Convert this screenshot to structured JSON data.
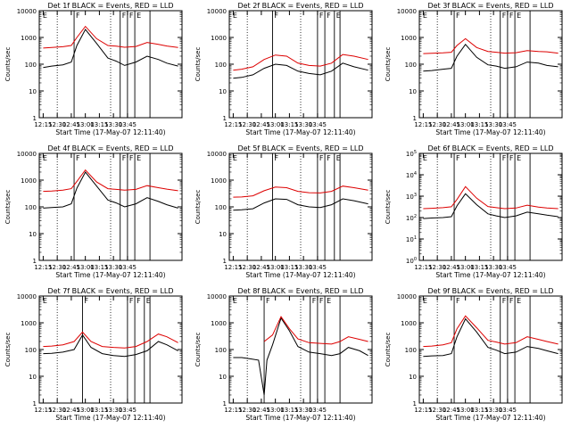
{
  "chart_data": [
    {
      "type": "line",
      "title": "Det 1f BLACK = Events, RED = LLD",
      "ylabel": "Counts/sec",
      "xlabel": "Start Time (17-May-07 12:11:40)",
      "ytick_style": "plain",
      "ylim": [
        1,
        10000
      ],
      "yscale": "log",
      "x_ticks": [
        "12:15",
        "12:30",
        "12:45",
        "13:00",
        "13:15",
        "13:30",
        "13:45"
      ],
      "vlines": [
        12.8,
        13.62,
        13.75,
        13.88,
        14.15
      ],
      "vdots": [
        12.5,
        13.45
      ],
      "marks": [
        "E",
        "F",
        "F",
        "F",
        "E"
      ],
      "series": [
        {
          "name": "Events",
          "color": "#000000",
          "x": [
            12.25,
            12.4,
            12.6,
            12.75,
            12.85,
            13.0,
            13.2,
            13.4,
            13.55,
            13.7,
            13.9,
            14.1,
            14.3,
            14.45,
            14.65
          ],
          "y": [
            75,
            85,
            95,
            120,
            500,
            2000,
            600,
            170,
            130,
            90,
            120,
            200,
            150,
            110,
            85
          ]
        },
        {
          "name": "LLD",
          "color": "#dd0000",
          "x": [
            12.25,
            12.4,
            12.6,
            12.75,
            12.85,
            13.0,
            13.2,
            13.4,
            13.55,
            13.7,
            13.9,
            14.1,
            14.3,
            14.45,
            14.65
          ],
          "y": [
            400,
            420,
            450,
            500,
            1000,
            2600,
            900,
            500,
            470,
            430,
            460,
            650,
            550,
            480,
            420
          ]
        }
      ]
    },
    {
      "type": "line",
      "title": "Det 2f BLACK = Events, RED = LLD",
      "ylabel": "Counts/sec",
      "xlabel": "Start Time (17-May-07 12:11:40)",
      "ytick_style": "plain",
      "ylim": [
        1,
        10000
      ],
      "yscale": "log",
      "x_ticks": [
        "12:15",
        "12:30",
        "12:45",
        "13:00",
        "13:15",
        "13:30",
        "13:45"
      ],
      "vlines": [
        12.95,
        13.75,
        13.88,
        14.05,
        14.15
      ],
      "vdots": [
        12.5,
        13.45
      ],
      "marks": [
        "E",
        "F",
        "F",
        "F",
        "E"
      ],
      "series": [
        {
          "name": "Events",
          "color": "#000000",
          "x": [
            12.25,
            12.4,
            12.6,
            12.8,
            13.0,
            13.2,
            13.4,
            13.6,
            13.8,
            14.0,
            14.2,
            14.4,
            14.65
          ],
          "y": [
            30,
            32,
            40,
            70,
            100,
            90,
            55,
            45,
            40,
            55,
            110,
            80,
            60
          ]
        },
        {
          "name": "LLD",
          "color": "#dd0000",
          "x": [
            12.25,
            12.4,
            12.6,
            12.8,
            13.0,
            13.2,
            13.4,
            13.6,
            13.8,
            14.0,
            14.2,
            14.4,
            14.65
          ],
          "y": [
            60,
            65,
            80,
            150,
            220,
            200,
            110,
            90,
            85,
            110,
            230,
            200,
            150
          ]
        }
      ]
    },
    {
      "type": "line",
      "title": "Det 3f BLACK = Events, RED = LLD",
      "ylabel": "Counts/sec",
      "xlabel": "Start Time (17-May-07 12:11:40)",
      "ytick_style": "plain",
      "ylim": [
        1,
        10000
      ],
      "yscale": "log",
      "x_ticks": [
        "12:15",
        "12:30",
        "12:45",
        "13:00",
        "13:15",
        "13:30",
        "13:45"
      ],
      "vlines": [
        12.8,
        13.62,
        13.75,
        13.88,
        14.15
      ],
      "vdots": [
        12.5,
        13.45
      ],
      "marks": [
        "E",
        "F",
        "F",
        "F",
        "E"
      ],
      "series": [
        {
          "name": "Events",
          "color": "#000000",
          "x": [
            12.25,
            12.4,
            12.6,
            12.75,
            12.85,
            13.0,
            13.2,
            13.4,
            13.55,
            13.7,
            13.9,
            14.1,
            14.3,
            14.45,
            14.65
          ],
          "y": [
            55,
            58,
            65,
            70,
            200,
            550,
            180,
            95,
            85,
            70,
            80,
            120,
            110,
            90,
            80
          ]
        },
        {
          "name": "LLD",
          "color": "#dd0000",
          "x": [
            12.25,
            12.4,
            12.6,
            12.75,
            12.85,
            13.0,
            13.2,
            13.4,
            13.55,
            13.7,
            13.9,
            14.1,
            14.3,
            14.45,
            14.65
          ],
          "y": [
            250,
            255,
            265,
            280,
            500,
            900,
            420,
            300,
            280,
            260,
            270,
            320,
            300,
            290,
            260
          ]
        }
      ]
    },
    {
      "type": "line",
      "title": "Det 4f BLACK = Events, RED = LLD",
      "ylabel": "Counts/sec",
      "xlabel": "Start Time (17-May-07 12:11:40)",
      "ytick_style": "plain",
      "ylim": [
        1,
        10000
      ],
      "yscale": "log",
      "x_ticks": [
        "12:15",
        "12:30",
        "12:45",
        "13:00",
        "13:15",
        "13:30",
        "13:45"
      ],
      "vlines": [
        12.8,
        13.62,
        13.75,
        13.88,
        14.15
      ],
      "vdots": [
        12.5,
        13.45
      ],
      "marks": [
        "E",
        "F",
        "F",
        "F",
        "E"
      ],
      "series": [
        {
          "name": "Events",
          "color": "#000000",
          "x": [
            12.25,
            12.4,
            12.6,
            12.75,
            12.85,
            13.0,
            13.2,
            13.4,
            13.55,
            13.7,
            13.9,
            14.1,
            14.3,
            14.45,
            14.65
          ],
          "y": [
            90,
            95,
            100,
            130,
            500,
            2000,
            600,
            180,
            140,
            100,
            130,
            220,
            160,
            120,
            90
          ]
        },
        {
          "name": "LLD",
          "color": "#dd0000",
          "x": [
            12.25,
            12.4,
            12.6,
            12.75,
            12.85,
            13.0,
            13.2,
            13.4,
            13.55,
            13.7,
            13.9,
            14.1,
            14.3,
            14.45,
            14.65
          ],
          "y": [
            380,
            390,
            420,
            480,
            900,
            2400,
            850,
            480,
            450,
            420,
            450,
            620,
            520,
            460,
            400
          ]
        }
      ]
    },
    {
      "type": "line",
      "title": "Det 5f BLACK = Events, RED = LLD",
      "ylabel": "Counts/sec",
      "xlabel": "Start Time (17-May-07 12:11:40)",
      "ytick_style": "plain",
      "ylim": [
        1,
        10000
      ],
      "yscale": "log",
      "x_ticks": [
        "12:15",
        "12:30",
        "12:45",
        "13:00",
        "13:15",
        "13:30",
        "13:45"
      ],
      "vlines": [
        12.95,
        13.75,
        13.88,
        14.05,
        14.15
      ],
      "vdots": [
        12.5,
        13.45
      ],
      "marks": [
        "E",
        "F",
        "F",
        "F",
        "E"
      ],
      "series": [
        {
          "name": "Events",
          "color": "#000000",
          "x": [
            12.25,
            12.4,
            12.6,
            12.8,
            13.0,
            13.2,
            13.4,
            13.6,
            13.8,
            14.0,
            14.2,
            14.4,
            14.65
          ],
          "y": [
            75,
            78,
            85,
            140,
            200,
            190,
            120,
            100,
            95,
            120,
            200,
            170,
            130
          ]
        },
        {
          "name": "LLD",
          "color": "#dd0000",
          "x": [
            12.25,
            12.4,
            12.6,
            12.8,
            13.0,
            13.2,
            13.4,
            13.6,
            13.8,
            14.0,
            14.2,
            14.4,
            14.65
          ],
          "y": [
            230,
            235,
            260,
            400,
            550,
            520,
            380,
            340,
            330,
            380,
            600,
            520,
            420
          ]
        }
      ]
    },
    {
      "type": "line",
      "title": "Det 6f BLACK = Events, RED = LLD",
      "ylabel": "Counts/sec",
      "xlabel": "Start Time (17-May-07 12:11:40)",
      "ytick_style": "exp",
      "ylim": [
        1,
        100000
      ],
      "yscale": "log",
      "x_ticks": [
        "12:15",
        "12:30",
        "12:45",
        "13:00",
        "13:15",
        "13:30",
        "13:45"
      ],
      "vlines": [
        12.8,
        13.62,
        13.75,
        13.88,
        14.15
      ],
      "vdots": [
        12.5,
        13.45
      ],
      "marks": [
        "E",
        "F",
        "F",
        "F",
        "E"
      ],
      "series": [
        {
          "name": "Events",
          "color": "#000000",
          "x": [
            12.25,
            12.4,
            12.6,
            12.75,
            12.85,
            13.0,
            13.2,
            13.4,
            13.55,
            13.7,
            13.9,
            14.1,
            14.3,
            14.45,
            14.65
          ],
          "y": [
            90,
            95,
            100,
            110,
            350,
            1300,
            400,
            150,
            120,
            100,
            120,
            180,
            150,
            130,
            110
          ]
        },
        {
          "name": "LLD",
          "color": "#dd0000",
          "x": [
            12.25,
            12.4,
            12.6,
            12.75,
            12.85,
            13.0,
            13.2,
            13.4,
            13.55,
            13.7,
            13.9,
            14.1,
            14.3,
            14.45,
            14.65
          ],
          "y": [
            260,
            270,
            290,
            320,
            700,
            2800,
            800,
            330,
            290,
            260,
            280,
            380,
            310,
            280,
            260
          ]
        }
      ]
    },
    {
      "type": "line",
      "title": "Det 7f BLACK = Events, RED = LLD",
      "ylabel": "Counts/sec",
      "xlabel": "Start Time (17-May-07 12:11:40)",
      "ytick_style": "plain",
      "ylim": [
        1,
        10000
      ],
      "yscale": "log",
      "x_ticks": [
        "12:15",
        "12:30",
        "12:45",
        "13:00",
        "13:15",
        "13:30",
        "13:45"
      ],
      "vlines": [
        12.95,
        13.75,
        13.88,
        14.05,
        14.15
      ],
      "vdots": [
        12.5,
        13.45
      ],
      "marks": [
        "E",
        "F",
        "F",
        "F",
        "E"
      ],
      "series": [
        {
          "name": "Events",
          "color": "#000000",
          "x": [
            12.25,
            12.4,
            12.6,
            12.8,
            12.95,
            13.1,
            13.3,
            13.5,
            13.7,
            13.9,
            14.1,
            14.3,
            14.45,
            14.65
          ],
          "y": [
            70,
            72,
            80,
            100,
            350,
            120,
            70,
            60,
            55,
            65,
            90,
            200,
            150,
            90
          ]
        },
        {
          "name": "LLD",
          "color": "#dd0000",
          "x": [
            12.25,
            12.4,
            12.6,
            12.8,
            12.95,
            13.1,
            13.3,
            13.5,
            13.7,
            13.9,
            14.1,
            14.3,
            14.45,
            14.65
          ],
          "y": [
            130,
            135,
            150,
            200,
            450,
            200,
            130,
            120,
            115,
            130,
            200,
            380,
            300,
            180
          ]
        }
      ]
    },
    {
      "type": "line",
      "title": "Det 8f BLACK = Events, RED = LLD",
      "ylabel": "Counts/sec",
      "xlabel": "Start Time (17-May-07 12:11:40)",
      "ytick_style": "plain",
      "ylim": [
        1,
        10000
      ],
      "yscale": "log",
      "x_ticks": [
        "12:15",
        "12:30",
        "12:45",
        "13:00",
        "13:15",
        "13:30",
        "13:45"
      ],
      "vlines": [
        12.8,
        13.62,
        13.75,
        13.88,
        14.15
      ],
      "vdots": [
        12.5,
        13.45
      ],
      "marks": [
        "E",
        "F",
        "F",
        "F",
        "E"
      ],
      "series": [
        {
          "name": "Events",
          "color": "#000000",
          "x": [
            12.25,
            12.4,
            12.55,
            12.7,
            12.8,
            12.85,
            12.95,
            13.1,
            13.25,
            13.4,
            13.6,
            13.8,
            14.0,
            14.15,
            14.3,
            14.5,
            14.65
          ],
          "y": [
            50,
            50,
            45,
            40,
            2,
            40,
            150,
            1500,
            500,
            130,
            80,
            70,
            60,
            70,
            120,
            90,
            60
          ]
        },
        {
          "name": "LLD",
          "color": "#dd0000",
          "x": [
            12.8,
            12.95,
            13.1,
            13.25,
            13.4,
            13.6,
            13.8,
            14.0,
            14.15,
            14.3,
            14.5,
            14.65
          ],
          "y": [
            200,
            350,
            1700,
            600,
            250,
            180,
            170,
            160,
            200,
            300,
            240,
            200
          ]
        }
      ]
    },
    {
      "type": "line",
      "title": "Det 9f BLACK = Events, RED = LLD",
      "ylabel": "Counts/sec",
      "xlabel": "Start Time (17-May-07 12:11:40)",
      "ytick_style": "plain",
      "ylim": [
        1,
        10000
      ],
      "yscale": "log",
      "x_ticks": [
        "12:15",
        "12:30",
        "12:45",
        "13:00",
        "13:15",
        "13:30",
        "13:45"
      ],
      "vlines": [
        12.8,
        13.62,
        13.75,
        13.88,
        14.15
      ],
      "vdots": [
        12.5,
        13.45
      ],
      "marks": [
        "E",
        "F",
        "F",
        "F",
        "E"
      ],
      "series": [
        {
          "name": "Events",
          "color": "#000000",
          "x": [
            12.25,
            12.4,
            12.6,
            12.75,
            12.85,
            13.0,
            13.2,
            13.4,
            13.55,
            13.7,
            13.9,
            14.1,
            14.3,
            14.45,
            14.65
          ],
          "y": [
            55,
            58,
            60,
            70,
            300,
            1400,
            450,
            120,
            95,
            70,
            80,
            130,
            110,
            90,
            70
          ]
        },
        {
          "name": "LLD",
          "color": "#dd0000",
          "x": [
            12.25,
            12.4,
            12.6,
            12.75,
            12.85,
            13.0,
            13.2,
            13.4,
            13.55,
            13.7,
            13.9,
            14.1,
            14.3,
            14.45,
            14.65
          ],
          "y": [
            130,
            135,
            150,
            180,
            600,
            1800,
            650,
            220,
            190,
            160,
            180,
            300,
            240,
            200,
            160
          ]
        }
      ]
    }
  ]
}
